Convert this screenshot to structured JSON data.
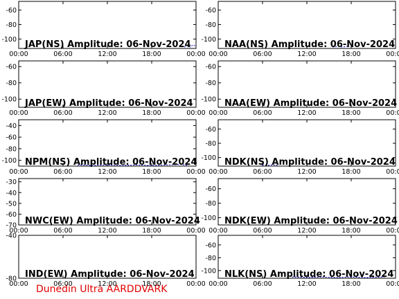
{
  "chart_data": [
    {
      "type": "line",
      "title": "JAP(NS) Amplitude: 06-Nov-2024",
      "xlim": [
        0,
        24
      ],
      "ylim": [
        -113,
        -48
      ],
      "yticks": [
        -60,
        -80,
        -100
      ],
      "xticks": [
        {
          "value": 0,
          "label": "00:00"
        },
        {
          "value": 6,
          "label": "06:00"
        },
        {
          "value": 12,
          "label": "12:00"
        },
        {
          "value": 18,
          "label": "18:00"
        },
        {
          "value": 24,
          "label": "00:00"
        }
      ],
      "x": [
        22.4,
        22.8,
        23.2,
        23.6,
        24
      ],
      "values": [
        -111,
        -109,
        -111,
        -108,
        -110
      ],
      "color": "#0000cc"
    },
    {
      "type": "line",
      "title": "NAA(NS) Amplitude: 06-Nov-2024",
      "xlim": [
        0,
        24
      ],
      "ylim": [
        -113,
        -48
      ],
      "yticks": [
        -60,
        -80,
        -100
      ],
      "xticks": [
        {
          "value": 0,
          "label": "00:00"
        },
        {
          "value": 6,
          "label": "06:00"
        },
        {
          "value": 12,
          "label": "12:00"
        },
        {
          "value": 18,
          "label": "18:00"
        },
        {
          "value": 24,
          "label": "00:00"
        }
      ],
      "x": [
        15.5,
        16.2,
        16.8,
        17.5,
        23.5,
        24
      ],
      "values": [
        -111,
        -110,
        -111,
        -110,
        null,
        -110
      ],
      "color": "#0000cc"
    },
    {
      "type": "line",
      "title": "JAP(EW) Amplitude: 06-Nov-2024",
      "xlim": [
        0,
        24
      ],
      "ylim": [
        -110,
        -53
      ],
      "yticks": [
        -60,
        -80,
        -100
      ],
      "xticks": [
        {
          "value": 0,
          "label": "00:00"
        },
        {
          "value": 6,
          "label": "06:00"
        },
        {
          "value": 12,
          "label": "12:00"
        },
        {
          "value": 18,
          "label": "18:00"
        },
        {
          "value": 24,
          "label": "00:00"
        }
      ],
      "x": [],
      "values": [],
      "color": "#0000cc"
    },
    {
      "type": "line",
      "title": "NAA(EW) Amplitude: 06-Nov-2024",
      "xlim": [
        0,
        24
      ],
      "ylim": [
        -110,
        -53
      ],
      "yticks": [
        -60,
        -80,
        -100
      ],
      "xticks": [
        {
          "value": 0,
          "label": "00:00"
        },
        {
          "value": 6,
          "label": "06:00"
        },
        {
          "value": 12,
          "label": "12:00"
        },
        {
          "value": 18,
          "label": "18:00"
        },
        {
          "value": 24,
          "label": "00:00"
        }
      ],
      "x": [],
      "values": [],
      "color": "#0000cc"
    },
    {
      "type": "line",
      "title": "NPM(NS) Amplitude: 06-Nov-2024",
      "xlim": [
        0,
        24
      ],
      "ylim": [
        -110,
        -30
      ],
      "yticks": [
        -40,
        -60,
        -80,
        -100
      ],
      "xticks": [
        {
          "value": 0,
          "label": "00:00"
        },
        {
          "value": 6,
          "label": "06:00"
        },
        {
          "value": 12,
          "label": "12:00"
        },
        {
          "value": 18,
          "label": "18:00"
        },
        {
          "value": 24,
          "label": "00:00"
        }
      ],
      "x": [
        8,
        10,
        12,
        14,
        16,
        18,
        20,
        22,
        23
      ],
      "values": [
        -108,
        -109,
        -108,
        -109,
        -108,
        -109,
        -108,
        -107,
        -109
      ],
      "color": "#0000cc"
    },
    {
      "type": "line",
      "title": "NDK(NS) Amplitude: 06-Nov-2024",
      "xlim": [
        0,
        24
      ],
      "ylim": [
        -112,
        -47
      ],
      "yticks": [
        -60,
        -80,
        -100
      ],
      "xticks": [
        {
          "value": 0,
          "label": "00:00"
        },
        {
          "value": 6,
          "label": "06:00"
        },
        {
          "value": 12,
          "label": "12:00"
        },
        {
          "value": 18,
          "label": "18:00"
        },
        {
          "value": 24,
          "label": "00:00"
        }
      ],
      "x": [
        6,
        6.7,
        7.4,
        8
      ],
      "values": [
        -110,
        -111,
        -110,
        -111
      ],
      "color": "#0000cc"
    },
    {
      "type": "line",
      "title": "NWC(EW) Amplitude: 06-Nov-2024",
      "xlim": [
        0,
        24
      ],
      "ylim": [
        -70,
        -27
      ],
      "yticks": [
        -30,
        -40,
        -50,
        -60,
        -70
      ],
      "xticks": [
        {
          "value": 0,
          "label": "00:00"
        },
        {
          "value": 6,
          "label": "06:00"
        },
        {
          "value": 12,
          "label": "12:00"
        },
        {
          "value": 18,
          "label": "18:00"
        },
        {
          "value": 24,
          "label": "00:00"
        }
      ],
      "x": [],
      "values": [],
      "color": "#0000cc"
    },
    {
      "type": "line",
      "title": "NDK(EW) Amplitude: 06-Nov-2024",
      "xlim": [
        0,
        24
      ],
      "ylim": [
        -110,
        -46
      ],
      "yticks": [
        -60,
        -80,
        -100
      ],
      "xticks": [
        {
          "value": 0,
          "label": "00:00"
        },
        {
          "value": 6,
          "label": "06:00"
        },
        {
          "value": 12,
          "label": "12:00"
        },
        {
          "value": 18,
          "label": "18:00"
        },
        {
          "value": 24,
          "label": "00:00"
        }
      ],
      "x": [],
      "values": [],
      "color": "#0000cc"
    },
    {
      "type": "line",
      "title": "IND(EW) Amplitude: 06-Nov-2024",
      "xlim": [
        0,
        24
      ],
      "ylim": [
        -80,
        -40
      ],
      "yticks": [
        -40,
        -80
      ],
      "xticks": [
        {
          "value": 0,
          "label": "00:00"
        },
        {
          "value": 6,
          "label": "06:00"
        },
        {
          "value": 12,
          "label": "12:00"
        },
        {
          "value": 18,
          "label": "18:00"
        },
        {
          "value": 24,
          "label": "00:00"
        }
      ],
      "x": [],
      "values": [],
      "color": "#0000cc"
    },
    {
      "type": "line",
      "title": "NLK(NS) Amplitude: 06-Nov-2024",
      "xlim": [
        0,
        24
      ],
      "ylim": [
        -112,
        -45
      ],
      "yticks": [
        -60,
        -80,
        -100
      ],
      "xticks": [
        {
          "value": 0,
          "label": "00:00"
        },
        {
          "value": 6,
          "label": "06:00"
        },
        {
          "value": 12,
          "label": "12:00"
        },
        {
          "value": 18,
          "label": "18:00"
        },
        {
          "value": 24,
          "label": "00:00"
        }
      ],
      "x": [
        10,
        12,
        14,
        16,
        18,
        20,
        22.5
      ],
      "values": [
        -110,
        -111,
        -110,
        -111,
        -110,
        -111,
        -110
      ],
      "color": "#0000cc"
    }
  ],
  "footer": "Dunedin Ultra AARDDVARK"
}
